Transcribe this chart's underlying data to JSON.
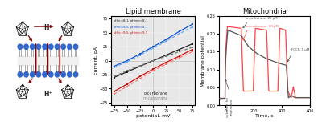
{
  "title_lipid": "Lipid membrane",
  "title_mito": "Mitochondria",
  "bg_color": "#ffffff",
  "lipid_iv": {
    "potential": [
      -75,
      -50,
      -25,
      0,
      25,
      50,
      75
    ],
    "series_solid": [
      {
        "values": [
          -30,
          -20,
          -10,
          0,
          10,
          20,
          30
        ],
        "color": "#222222"
      },
      {
        "values": [
          -10,
          0,
          12,
          25,
          38,
          52,
          65
        ],
        "color": "#1155cc"
      },
      {
        "values": [
          -55,
          -42,
          -28,
          -15,
          -3,
          8,
          20
        ],
        "color": "#cc1111"
      }
    ],
    "series_dashed": [
      {
        "values": [
          -28,
          -18,
          -9,
          0,
          8,
          16,
          24
        ],
        "color": "#777777"
      },
      {
        "values": [
          -12,
          -2,
          10,
          22,
          35,
          48,
          60
        ],
        "color": "#66aaff"
      },
      {
        "values": [
          -60,
          -46,
          -32,
          -18,
          -6,
          5,
          16
        ],
        "color": "#ff7777"
      }
    ],
    "xlabel": "potential, mV",
    "ylabel": "current, pA",
    "ylim": [
      -80,
      80
    ],
    "xlim": [
      -80,
      80
    ],
    "ph_labels": [
      {
        "text": "pH_cis=8.1, pH_trans=8.1",
        "color": "#222222"
      },
      {
        "text": "pH_cis=9.5, pH_trans=8.1",
        "color": "#1155cc"
      },
      {
        "text": "pH_cis=9.5, pH_trans=9.5",
        "color": "#cc1111"
      }
    ],
    "legend_o": "o-carborane",
    "legend_m": "m-carborane",
    "bg_color": "#e8e8e8"
  },
  "mito": {
    "xlabel": "Time, s",
    "ylabel": "Membrane potential",
    "ylim": [
      0.0,
      0.25
    ],
    "xlim": [
      -50,
      600
    ],
    "yticks": [
      0.0,
      0.05,
      0.1,
      0.15,
      0.2,
      0.25
    ],
    "xticks": [
      0,
      200,
      400,
      600
    ],
    "annotation_substrate": "substrate for\nrespiration",
    "annotation_o": "o-carborane, 20 μM",
    "annotation_m": "m-carborane, 20 μM",
    "annotation_fccp": "FCCP, 1 μM",
    "color_o": "#555555",
    "color_m": "#ff4444"
  }
}
